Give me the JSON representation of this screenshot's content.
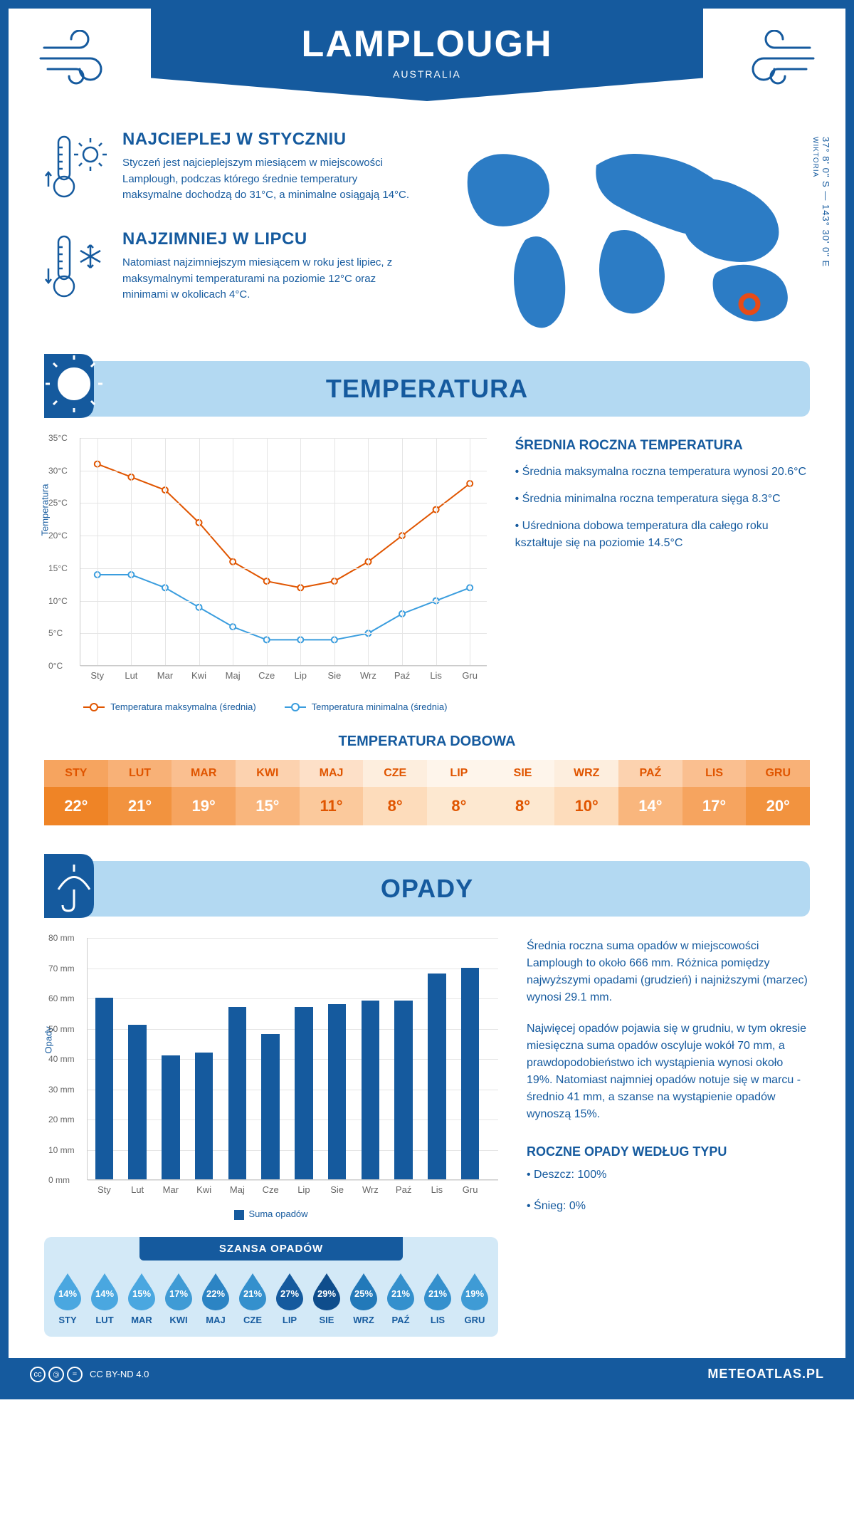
{
  "header": {
    "title": "LAMPLOUGH",
    "subtitle": "AUSTRALIA"
  },
  "coords": {
    "lat": "37° 8' 0\" S",
    "lon": "143° 30' 0\" E",
    "region": "WIKTORIA"
  },
  "facts": {
    "warm": {
      "title": "NAJCIEPLEJ W STYCZNIU",
      "text": "Styczeń jest najcieplejszym miesiącem w miejscowości Lamplough, podczas którego średnie temperatury maksymalne dochodzą do 31°C, a minimalne osiągają 14°C."
    },
    "cold": {
      "title": "NAJZIMNIEJ W LIPCU",
      "text": "Natomiast najzimniejszym miesiącem w roku jest lipiec, z maksymalnymi temperaturami na poziomie 12°C oraz minimami w okolicach 4°C."
    }
  },
  "sections": {
    "temperature": "TEMPERATURA",
    "precipitation": "OPADY"
  },
  "temperature": {
    "chart": {
      "months": [
        "Sty",
        "Lut",
        "Mar",
        "Kwi",
        "Maj",
        "Cze",
        "Lip",
        "Sie",
        "Wrz",
        "Paź",
        "Lis",
        "Gru"
      ],
      "max": [
        31,
        29,
        27,
        22,
        16,
        13,
        12,
        13,
        16,
        20,
        24,
        28
      ],
      "min": [
        14,
        14,
        12,
        9,
        6,
        4,
        4,
        4,
        5,
        8,
        10,
        12
      ],
      "ylim": [
        0,
        35
      ],
      "ytick": 5,
      "yunit": "°C",
      "ylabel": "Temperatura",
      "max_color": "#e05500",
      "min_color": "#3a9dde",
      "grid_color": "#e5e5e5",
      "line_width": 2,
      "marker_size": 4
    },
    "legend": {
      "max": "Temperatura maksymalna (średnia)",
      "min": "Temperatura minimalna (średnia)"
    },
    "side": {
      "title": "ŚREDNIA ROCZNA TEMPERATURA",
      "items": [
        "• Średnia maksymalna roczna temperatura wynosi 20.6°C",
        "• Średnia minimalna roczna temperatura sięga 8.3°C",
        "• Uśredniona dobowa temperatura dla całego roku kształtuje się na poziomie 14.5°C"
      ]
    },
    "dobowa": {
      "title": "TEMPERATURA DOBOWA",
      "months": [
        "STY",
        "LUT",
        "MAR",
        "KWI",
        "MAJ",
        "CZE",
        "LIP",
        "SIE",
        "WRZ",
        "PAŹ",
        "LIS",
        "GRU"
      ],
      "values": [
        "22°",
        "21°",
        "19°",
        "15°",
        "11°",
        "8°",
        "8°",
        "8°",
        "10°",
        "14°",
        "17°",
        "20°"
      ],
      "header_colors": [
        "#f6a45f",
        "#f8b177",
        "#fabf90",
        "#fcd2af",
        "#fde0c8",
        "#fdeede",
        "#fef5eb",
        "#fef5eb",
        "#fdeede",
        "#fcd2af",
        "#fabf90",
        "#f8b177"
      ],
      "value_colors": [
        "#ef8426",
        "#f2933f",
        "#f6a45f",
        "#f9b67d",
        "#fbc99c",
        "#fddcbb",
        "#fde8d0",
        "#fde8d0",
        "#fddcbb",
        "#f9b67d",
        "#f6a45f",
        "#f2933f"
      ],
      "header_text_color": "#e05500",
      "value_text_colors": [
        "#ffffff",
        "#ffffff",
        "#ffffff",
        "#ffffff",
        "#e05500",
        "#e05500",
        "#e05500",
        "#e05500",
        "#e05500",
        "#ffffff",
        "#ffffff",
        "#ffffff"
      ]
    }
  },
  "precipitation": {
    "chart": {
      "months": [
        "Sty",
        "Lut",
        "Mar",
        "Kwi",
        "Maj",
        "Cze",
        "Lip",
        "Sie",
        "Wrz",
        "Paź",
        "Lis",
        "Gru"
      ],
      "values": [
        60,
        51,
        41,
        42,
        57,
        48,
        57,
        58,
        59,
        59,
        68,
        70
      ],
      "ylim": [
        0,
        80
      ],
      "ytick": 10,
      "yunit": " mm",
      "ylabel": "Opady",
      "bar_color": "#155a9e",
      "bar_width": 0.55,
      "grid_color": "#e5e5e5",
      "series_label": "Suma opadów"
    },
    "side": {
      "p1": "Średnia roczna suma opadów w miejscowości Lamplough to około 666 mm. Różnica pomiędzy najwyższymi opadami (grudzień) i najniższymi (marzec) wynosi 29.1 mm.",
      "p2": "Najwięcej opadów pojawia się w grudniu, w tym okresie miesięczna suma opadów oscyluje wokół 70 mm, a prawdopodobieństwo ich wystąpienia wynosi około 19%. Natomiast najmniej opadów notuje się w marcu - średnio 41 mm, a szanse na wystąpienie opadów wynoszą 15%.",
      "type_title": "ROCZNE OPADY WEDŁUG TYPU",
      "type_items": [
        "• Deszcz: 100%",
        "• Śnieg: 0%"
      ]
    },
    "szansa": {
      "title": "SZANSA OPADÓW",
      "months": [
        "STY",
        "LUT",
        "MAR",
        "KWI",
        "MAJ",
        "CZE",
        "LIP",
        "SIE",
        "WRZ",
        "PAŹ",
        "LIS",
        "GRU"
      ],
      "values": [
        "14%",
        "14%",
        "15%",
        "17%",
        "22%",
        "21%",
        "27%",
        "29%",
        "25%",
        "21%",
        "21%",
        "19%"
      ],
      "drop_colors": [
        "#4aa7e0",
        "#4aa7e0",
        "#4aa7e0",
        "#3f9bd5",
        "#2c84c4",
        "#3490cd",
        "#155a9e",
        "#0f4d8c",
        "#2279b9",
        "#3490cd",
        "#3490cd",
        "#3f9bd5"
      ]
    }
  },
  "footer": {
    "license": "CC BY-ND 4.0",
    "brand": "METEOATLAS.PL"
  },
  "colors": {
    "primary": "#155a9e",
    "light_blue": "#b3d9f2",
    "accent_orange": "#e05500",
    "map_blue": "#2c7cc5"
  }
}
